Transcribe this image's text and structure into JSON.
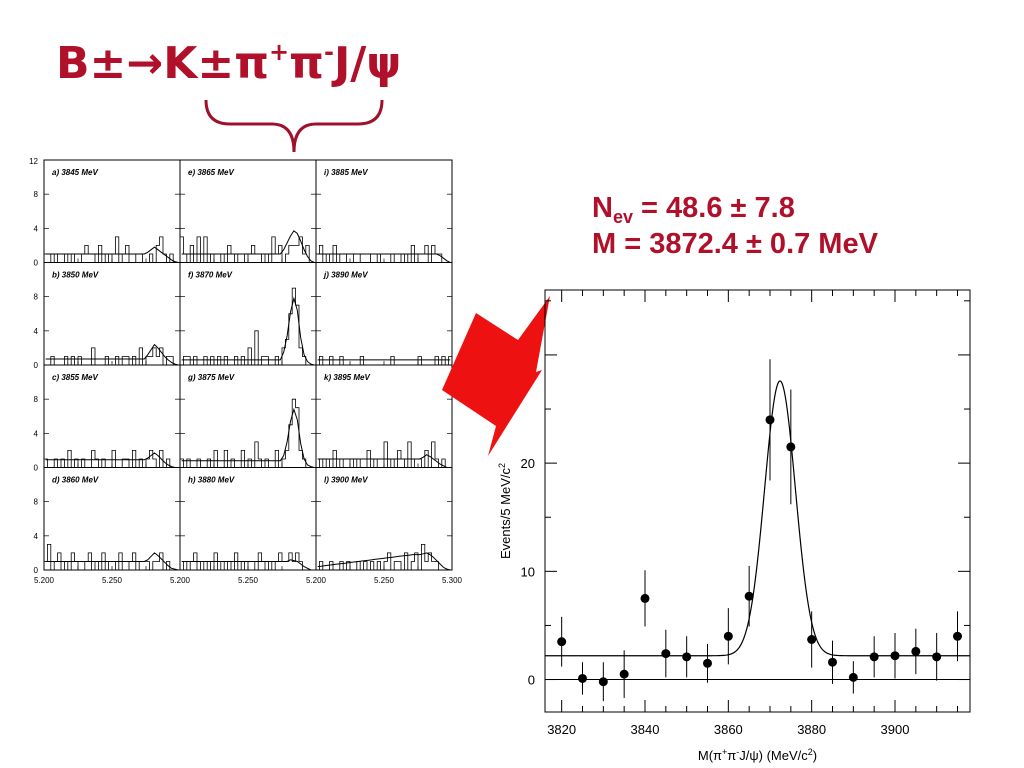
{
  "title": {
    "prefix": "B±→K±π",
    "sup1": "+",
    "mid": "π",
    "sup2": "-",
    "suffix": "J/ψ"
  },
  "fit_results": {
    "nev_label": "N",
    "nev_sub": "ev",
    "nev_value": " = 48.6 ± 7.8",
    "mass_line": "M = 3872.4 ± 0.7 MeV"
  },
  "colors": {
    "title": "#b0102a",
    "arrow": "#ee1111",
    "brace": "#a0102a",
    "axes": "#000000"
  },
  "chart_data": [
    {
      "type": "histogram-grid",
      "rows": 4,
      "cols": 3,
      "xlim": [
        5.2,
        5.3
      ],
      "ylim": [
        0,
        12
      ],
      "yticks": [
        0,
        4,
        8,
        12
      ],
      "ytick_labels_left": [
        "0",
        "4",
        "8",
        "12"
      ],
      "row_ytick_labels": [
        "0",
        "4",
        "8"
      ],
      "xtick_labels_bottom": [
        "5.200",
        "5.250",
        "5.200",
        "5.250",
        "5.200",
        "5.250",
        "5.300"
      ],
      "panels": [
        {
          "label": "a) 3845 MeV",
          "counts": [
            1,
            1,
            0,
            1,
            0,
            0,
            1,
            0,
            1,
            0,
            0,
            1,
            2,
            1,
            1,
            0,
            2,
            0,
            1,
            0,
            1,
            3,
            0,
            1,
            2,
            0,
            0,
            1,
            1,
            0,
            0,
            1,
            0,
            2,
            3,
            1,
            0,
            1,
            0,
            0
          ],
          "fit": [
            1,
            1,
            1,
            1,
            1,
            1,
            1,
            1,
            1,
            1,
            1,
            1,
            1,
            1,
            1,
            1,
            1,
            1,
            1,
            1,
            1,
            1,
            1,
            1,
            1,
            1,
            1,
            1,
            1,
            1,
            1.2,
            1.5,
            1.8,
            1.5,
            1.2,
            0.9,
            0.6,
            0.3,
            0.1,
            0
          ]
        },
        {
          "label": "e) 3865 MeV",
          "counts": [
            3,
            1,
            0,
            2,
            0,
            3,
            0,
            3,
            0,
            1,
            0,
            0,
            1,
            0,
            2,
            1,
            0,
            1,
            1,
            0,
            1,
            2,
            1,
            1,
            0,
            1,
            0,
            3,
            1,
            2,
            0,
            1,
            2,
            2,
            2,
            3,
            1,
            2,
            0,
            0
          ],
          "fit": [
            1,
            1,
            1,
            1,
            1,
            1,
            1,
            1,
            1,
            1,
            1,
            1,
            1,
            1,
            1,
            1,
            1,
            1,
            1,
            1,
            1,
            1,
            1,
            1,
            1,
            1,
            1,
            1,
            1,
            1,
            1.5,
            2.3,
            3.1,
            3.7,
            3.4,
            2.5,
            1.5,
            0.7,
            0.2,
            0
          ]
        },
        {
          "label": "i) 3885 MeV",
          "counts": [
            1,
            2,
            0,
            1,
            0,
            2,
            0,
            1,
            1,
            0,
            0,
            1,
            1,
            0,
            0,
            0,
            1,
            1,
            0,
            1,
            1,
            1,
            0,
            1,
            1,
            0,
            1,
            0,
            2,
            0,
            1,
            1,
            2,
            0,
            2,
            1,
            1,
            0,
            0,
            0
          ],
          "fit": [
            1,
            1,
            1,
            1,
            1,
            1,
            1,
            1,
            1,
            1,
            1,
            1,
            1,
            1,
            1,
            1,
            1,
            1,
            1,
            1,
            1,
            1,
            1,
            1,
            1,
            1,
            1,
            1,
            1,
            1,
            1,
            1,
            1,
            1,
            1,
            1,
            0.8,
            0.5,
            0.2,
            0
          ]
        },
        {
          "label": "b) 3850 MeV",
          "counts": [
            0,
            0,
            1,
            0,
            0,
            0,
            1,
            0,
            1,
            0,
            1,
            0,
            0,
            0,
            2,
            0,
            0,
            0,
            1,
            0,
            0,
            1,
            0,
            1,
            1,
            0,
            1,
            0,
            2,
            0,
            1,
            1,
            2,
            1,
            2,
            0,
            1,
            1,
            0,
            0
          ],
          "fit": [
            0.7,
            0.7,
            0.7,
            0.7,
            0.7,
            0.7,
            0.7,
            0.7,
            0.7,
            0.7,
            0.7,
            0.7,
            0.7,
            0.7,
            0.7,
            0.7,
            0.7,
            0.7,
            0.7,
            0.7,
            0.7,
            0.7,
            0.7,
            0.7,
            0.7,
            0.7,
            0.7,
            0.7,
            0.7,
            0.7,
            1.2,
            1.8,
            2.4,
            2.0,
            1.5,
            1.0,
            0.6,
            0.3,
            0.1,
            0
          ]
        },
        {
          "label": "f) 3870 MeV",
          "counts": [
            0,
            1,
            1,
            0,
            1,
            0,
            0,
            1,
            0,
            1,
            0,
            1,
            0,
            1,
            0,
            0,
            1,
            0,
            1,
            0,
            2,
            0,
            4,
            0,
            1,
            1,
            0,
            0,
            1,
            0,
            2,
            3,
            6,
            9,
            7,
            2,
            1,
            0,
            0,
            0
          ],
          "fit": [
            0.6,
            0.6,
            0.6,
            0.6,
            0.6,
            0.6,
            0.6,
            0.6,
            0.6,
            0.6,
            0.6,
            0.6,
            0.6,
            0.6,
            0.6,
            0.6,
            0.6,
            0.6,
            0.6,
            0.6,
            0.6,
            0.6,
            0.6,
            0.6,
            0.6,
            0.6,
            0.6,
            0.6,
            0.6,
            0.6,
            1.5,
            3.4,
            6.2,
            7.8,
            6.4,
            3.2,
            1.2,
            0.4,
            0.1,
            0
          ]
        },
        {
          "label": "j) 3890 MeV",
          "counts": [
            0,
            1,
            0,
            0,
            1,
            0,
            0,
            1,
            0,
            0,
            0,
            0,
            0,
            1,
            0,
            0,
            0,
            0,
            0,
            0,
            0,
            0,
            1,
            0,
            0,
            0,
            0,
            0,
            0,
            0,
            1,
            0,
            0,
            0,
            0,
            1,
            0,
            1,
            0,
            1
          ],
          "fit": [
            0.6,
            0.6,
            0.6,
            0.6,
            0.6,
            0.6,
            0.6,
            0.6,
            0.6,
            0.6,
            0.6,
            0.6,
            0.6,
            0.6,
            0.6,
            0.6,
            0.6,
            0.6,
            0.6,
            0.6,
            0.6,
            0.6,
            0.6,
            0.6,
            0.6,
            0.6,
            0.6,
            0.6,
            0.6,
            0.6,
            0.6,
            0.6,
            0.6,
            0.6,
            0.6,
            0.6,
            0.6,
            0.6,
            0.6,
            0.6
          ]
        },
        {
          "label": "c) 3855 MeV",
          "counts": [
            1,
            0,
            0,
            1,
            0,
            1,
            0,
            2,
            0,
            1,
            0,
            1,
            0,
            0,
            2,
            1,
            0,
            1,
            0,
            0,
            2,
            0,
            0,
            1,
            1,
            0,
            2,
            0,
            1,
            0,
            1,
            2,
            1,
            0,
            2,
            0,
            1,
            0,
            0,
            0
          ],
          "fit": [
            0.9,
            0.9,
            0.9,
            0.9,
            0.9,
            0.9,
            0.9,
            0.9,
            0.9,
            0.9,
            0.9,
            0.9,
            0.9,
            0.9,
            0.9,
            0.9,
            0.9,
            0.9,
            0.9,
            0.9,
            0.9,
            0.9,
            0.9,
            0.9,
            0.9,
            0.9,
            0.9,
            0.9,
            0.9,
            0.9,
            1.1,
            1.4,
            1.7,
            1.4,
            1.0,
            0.6,
            0.3,
            0.1,
            0,
            0
          ]
        },
        {
          "label": "g) 3875 MeV",
          "counts": [
            1,
            0,
            1,
            0,
            0,
            1,
            0,
            0,
            1,
            0,
            2,
            0,
            0,
            2,
            0,
            1,
            0,
            0,
            2,
            0,
            1,
            0,
            3,
            1,
            0,
            1,
            0,
            0,
            2,
            0,
            1,
            2,
            5,
            8,
            7,
            2,
            1,
            0,
            0,
            0
          ],
          "fit": [
            0.8,
            0.8,
            0.8,
            0.8,
            0.8,
            0.8,
            0.8,
            0.8,
            0.8,
            0.8,
            0.8,
            0.8,
            0.8,
            0.8,
            0.8,
            0.8,
            0.8,
            0.8,
            0.8,
            0.8,
            0.8,
            0.8,
            0.8,
            0.8,
            0.8,
            0.8,
            0.8,
            0.8,
            0.8,
            0.8,
            1.4,
            3.0,
            5.4,
            6.8,
            5.6,
            2.8,
            1.0,
            0.3,
            0.1,
            0
          ]
        },
        {
          "label": "k) 3895 MeV",
          "counts": [
            0,
            1,
            0,
            1,
            0,
            2,
            0,
            1,
            0,
            0,
            1,
            0,
            1,
            0,
            0,
            2,
            0,
            1,
            0,
            0,
            3,
            0,
            1,
            0,
            2,
            1,
            0,
            3,
            0,
            1,
            1,
            0,
            2,
            0,
            3,
            1,
            0,
            1,
            0,
            0
          ],
          "fit": [
            1,
            1,
            1,
            1,
            1,
            1,
            1,
            1,
            1,
            1,
            1,
            1,
            1,
            1,
            1,
            1,
            1,
            1,
            1,
            1,
            1,
            1,
            1,
            1,
            1,
            1,
            1,
            1,
            1,
            1,
            1,
            1.2,
            1.5,
            1.3,
            1.0,
            0.7,
            0.4,
            0.2,
            0,
            0
          ]
        },
        {
          "label": "d) 3860 MeV",
          "counts": [
            1,
            3,
            0,
            1,
            2,
            0,
            1,
            0,
            2,
            1,
            0,
            0,
            1,
            2,
            0,
            1,
            0,
            2,
            0,
            1,
            1,
            0,
            2,
            0,
            0,
            1,
            2,
            0,
            1,
            1,
            1,
            0,
            1,
            1,
            2,
            0,
            1,
            0,
            0,
            0
          ],
          "fit": [
            1,
            1,
            1,
            1,
            1,
            1,
            1,
            1,
            1,
            1,
            1,
            1,
            1,
            1,
            1,
            1,
            1,
            1,
            1,
            1,
            1,
            1,
            1,
            1,
            1,
            1,
            1,
            1,
            1,
            1,
            1.2,
            1.6,
            2.0,
            1.7,
            1.3,
            0.9,
            0.5,
            0.2,
            0.1,
            0
          ]
        },
        {
          "label": "h) 3880 MeV",
          "counts": [
            0,
            1,
            0,
            1,
            2,
            0,
            1,
            0,
            1,
            0,
            2,
            0,
            1,
            0,
            1,
            0,
            2,
            0,
            1,
            0,
            1,
            1,
            0,
            2,
            1,
            0,
            1,
            0,
            1,
            2,
            1,
            1,
            2,
            1,
            2,
            1,
            0,
            0,
            0,
            0
          ],
          "fit": [
            1,
            1,
            1,
            1,
            1,
            1,
            1,
            1,
            1,
            1,
            1,
            1,
            1,
            1,
            1,
            1,
            1,
            1,
            1,
            1,
            1,
            1,
            1,
            1,
            1,
            1,
            1,
            1,
            1,
            1,
            1,
            1,
            1.2,
            1.1,
            1.0,
            0.7,
            0.4,
            0.2,
            0,
            0
          ]
        },
        {
          "label": "l) 3900 MeV",
          "counts": [
            0,
            1,
            0,
            0,
            1,
            0,
            0,
            1,
            0,
            1,
            0,
            0,
            1,
            0,
            1,
            0,
            1,
            0,
            1,
            0,
            1,
            2,
            0,
            1,
            1,
            0,
            2,
            0,
            1,
            2,
            0,
            3,
            1,
            2,
            1,
            1,
            0,
            0,
            0,
            0
          ],
          "fit": [
            0.4,
            0.45,
            0.5,
            0.55,
            0.6,
            0.65,
            0.7,
            0.75,
            0.8,
            0.85,
            0.9,
            0.95,
            1.0,
            1.05,
            1.1,
            1.15,
            1.2,
            1.25,
            1.3,
            1.35,
            1.4,
            1.45,
            1.5,
            1.55,
            1.6,
            1.65,
            1.7,
            1.75,
            1.8,
            1.8,
            1.8,
            1.9,
            2.0,
            1.8,
            1.5,
            1.1,
            0.7,
            0.3,
            0.1,
            0
          ]
        }
      ]
    },
    {
      "type": "scatter",
      "xlabel_parts": [
        "M(π",
        "+",
        "π",
        "-",
        "J/ψ) (MeV/c",
        "2",
        ")"
      ],
      "ylabel_parts": [
        "Events/5 MeV/c",
        "2"
      ],
      "xlim": [
        3816,
        3918
      ],
      "ylim": [
        -3,
        36
      ],
      "xticks": [
        3820,
        3840,
        3860,
        3880,
        3900
      ],
      "xtick_labels": [
        "3820",
        "3840",
        "3860",
        "3880",
        "3900"
      ],
      "yticks": [
        0,
        10,
        20
      ],
      "ytick_labels": [
        "0",
        "10",
        "20"
      ],
      "series": [
        {
          "x": [
            3820,
            3825,
            3830,
            3835,
            3840,
            3845,
            3850,
            3855,
            3860,
            3865,
            3870,
            3875,
            3880,
            3885,
            3890,
            3895,
            3900,
            3905,
            3910,
            3915
          ],
          "y": [
            3.5,
            0.1,
            -0.2,
            0.5,
            7.5,
            2.4,
            2.1,
            1.5,
            4.0,
            7.7,
            24.0,
            21.5,
            3.7,
            1.6,
            0.2,
            2.1,
            2.2,
            2.6,
            2.1,
            4.0
          ],
          "err": [
            2.3,
            1.5,
            1.8,
            2.2,
            2.6,
            2.2,
            1.9,
            1.8,
            2.6,
            2.8,
            5.6,
            5.3,
            2.6,
            2.0,
            1.5,
            1.9,
            2.1,
            2.1,
            2.2,
            2.3
          ]
        }
      ],
      "fit_curve": {
        "mean": 3872.4,
        "sigma": 3.7,
        "amplitude": 25.4,
        "baseline": 2.2
      }
    }
  ]
}
